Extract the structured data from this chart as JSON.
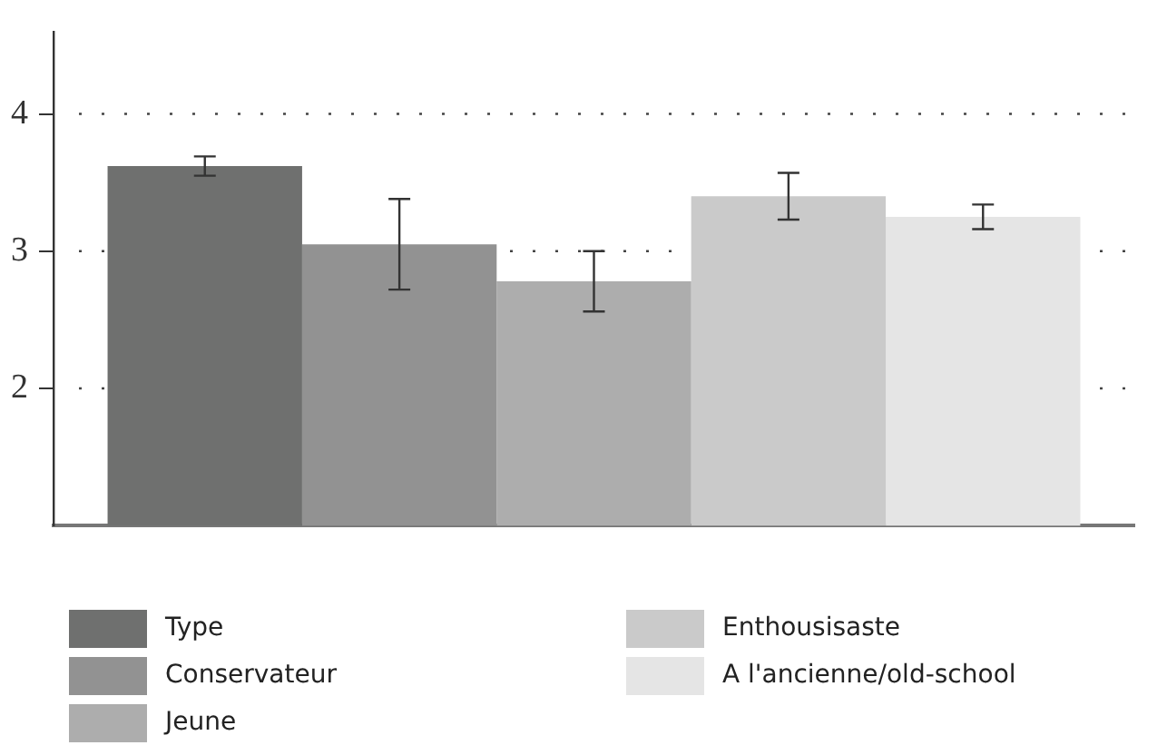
{
  "chart_data": {
    "type": "bar",
    "categories": [
      null
    ],
    "series": [
      {
        "name": "Type",
        "color": "#6f706f",
        "values": [
          3.62
        ],
        "errors": [
          0.07
        ]
      },
      {
        "name": "Conservateur",
        "color": "#929292",
        "values": [
          3.05
        ],
        "errors": [
          0.33
        ]
      },
      {
        "name": "Jeune",
        "color": "#adadad",
        "values": [
          2.78
        ],
        "errors": [
          0.22
        ]
      },
      {
        "name": "Enthousisaste",
        "color": "#cacaca",
        "values": [
          3.4
        ],
        "errors": [
          0.17
        ]
      },
      {
        "name": "A l'ancienne/old-school",
        "color": "#e5e5e5",
        "values": [
          3.25
        ],
        "errors": [
          0.09
        ]
      }
    ],
    "ylim": [
      1,
      4.6
    ],
    "yticks": [
      2,
      3,
      4
    ],
    "grid": "y",
    "legend": "bottom"
  }
}
